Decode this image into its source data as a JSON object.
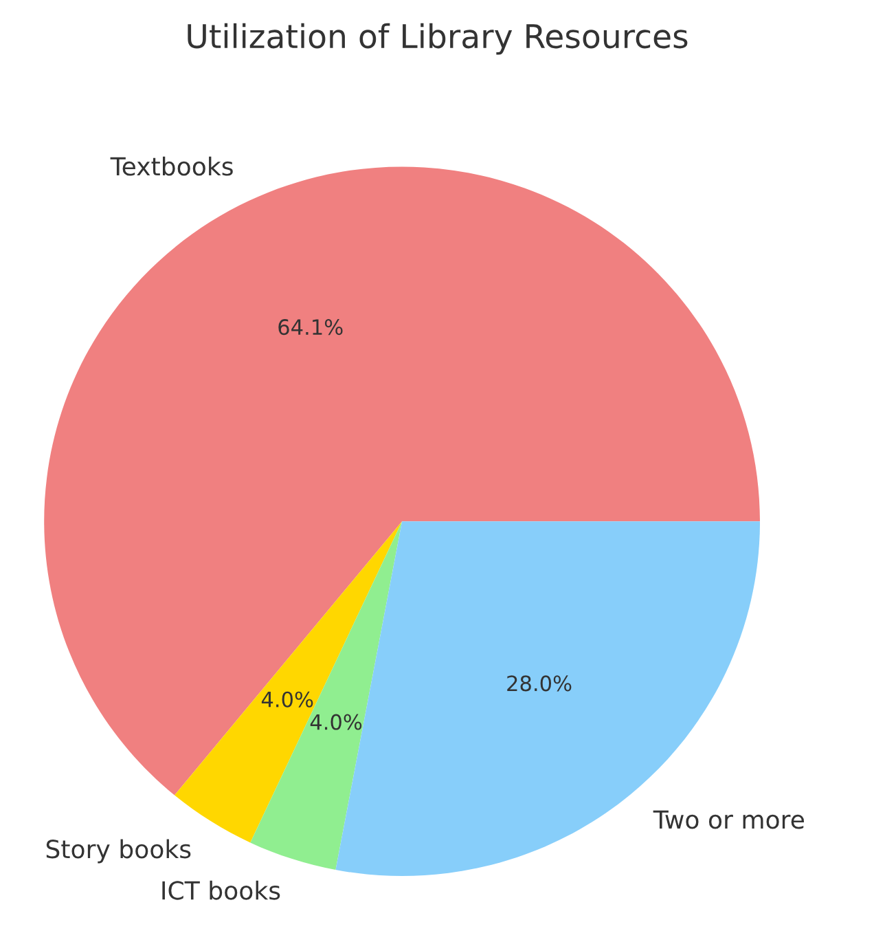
{
  "chart_data": {
    "type": "pie",
    "title": "Utilization of Library Resources",
    "categories": [
      "Textbooks",
      "Story books",
      "ICT books",
      "Two or more"
    ],
    "values": [
      64.1,
      4.0,
      4.0,
      28.0
    ],
    "colors": [
      "#f08080",
      "#ffd700",
      "#90ee90",
      "#87cefa"
    ],
    "value_labels": [
      "64.1%",
      "4.0%",
      "4.0%",
      "28.0%"
    ]
  }
}
